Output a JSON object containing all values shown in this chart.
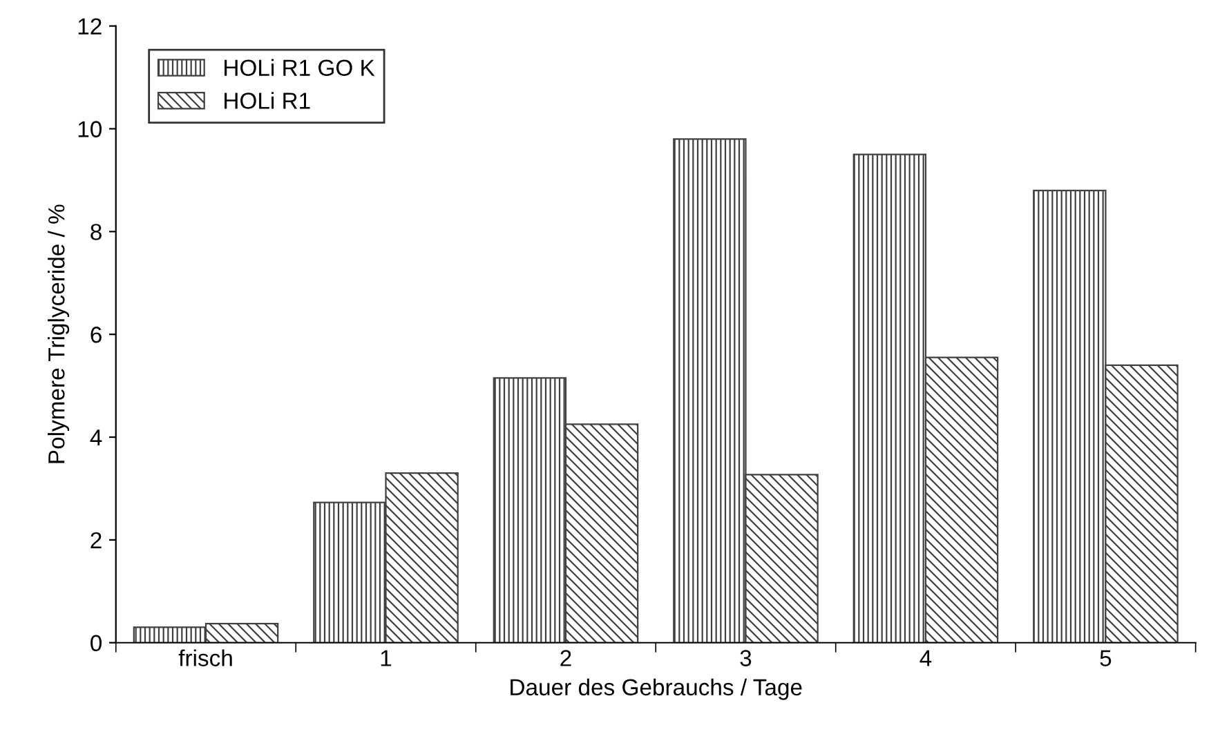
{
  "chart_data": {
    "type": "bar",
    "xlabel": "Dauer des Gebrauchs / Tage",
    "ylabel": "Polymere Triglyceride / %",
    "categories": [
      "frisch",
      "1",
      "2",
      "3",
      "4",
      "5"
    ],
    "series": [
      {
        "name": "HOLi R1 GO K",
        "color": "#404040",
        "values": [
          0.3,
          2.73,
          5.15,
          9.8,
          9.5,
          8.8
        ]
      },
      {
        "name": "HOLi R1",
        "color": "#404040",
        "values": [
          0.37,
          3.3,
          4.25,
          3.27,
          5.55,
          5.4
        ]
      }
    ],
    "ylim": [
      0,
      12
    ],
    "yticks": [
      0,
      2,
      4,
      6,
      8,
      10,
      12
    ],
    "grid": false,
    "legend": "top left"
  }
}
